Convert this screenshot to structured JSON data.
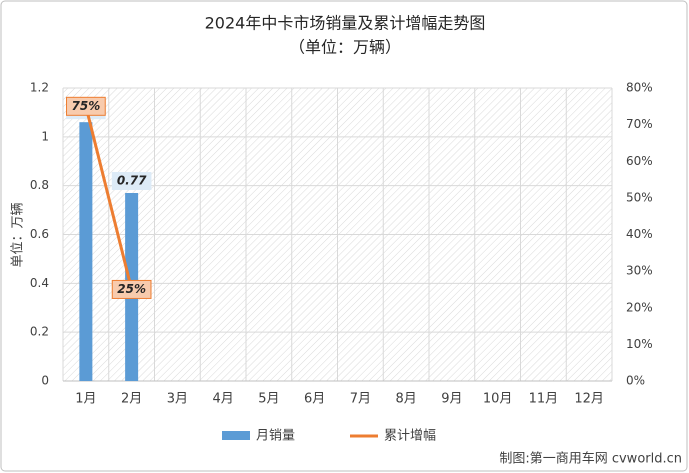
{
  "chart_data": {
    "type": "bar",
    "title": "2024年中卡市场销量及累计增幅走势图",
    "subtitle": "（单位：万辆）",
    "ylabel": "单位：万辆",
    "categories": [
      "1月",
      "2月",
      "3月",
      "4月",
      "5月",
      "6月",
      "7月",
      "8月",
      "9月",
      "10月",
      "11月",
      "12月"
    ],
    "series": [
      {
        "name": "月销量",
        "type": "bar",
        "color": "#5b9bd5",
        "values": [
          1.06,
          0.77,
          null,
          null,
          null,
          null,
          null,
          null,
          null,
          null,
          null,
          null
        ]
      },
      {
        "name": "累计增幅",
        "type": "line",
        "axis": "y2",
        "color": "#ed7d31",
        "values": [
          75,
          25,
          null,
          null,
          null,
          null,
          null,
          null,
          null,
          null,
          null,
          null
        ],
        "value_labels": [
          "75%",
          "25%",
          null,
          null,
          null,
          null,
          null,
          null,
          null,
          null,
          null,
          null
        ]
      }
    ],
    "ylim": [
      0,
      1.2
    ],
    "yticks": [
      0,
      0.2,
      0.4,
      0.6,
      0.8,
      1,
      1.2
    ],
    "y2lim": [
      0,
      80
    ],
    "y2ticks": [
      {
        "value": 0,
        "label": "0%"
      },
      {
        "value": 10,
        "label": "10%"
      },
      {
        "value": 20,
        "label": "20%"
      },
      {
        "value": 30,
        "label": "30%"
      },
      {
        "value": 40,
        "label": "40%"
      },
      {
        "value": 50,
        "label": "50%"
      },
      {
        "value": 60,
        "label": "60%"
      },
      {
        "value": 70,
        "label": "70%"
      },
      {
        "value": 80,
        "label": "80%"
      }
    ],
    "grid": true,
    "legend": "bottom",
    "source": "制图:第一商用车网 cvworld.cn"
  }
}
